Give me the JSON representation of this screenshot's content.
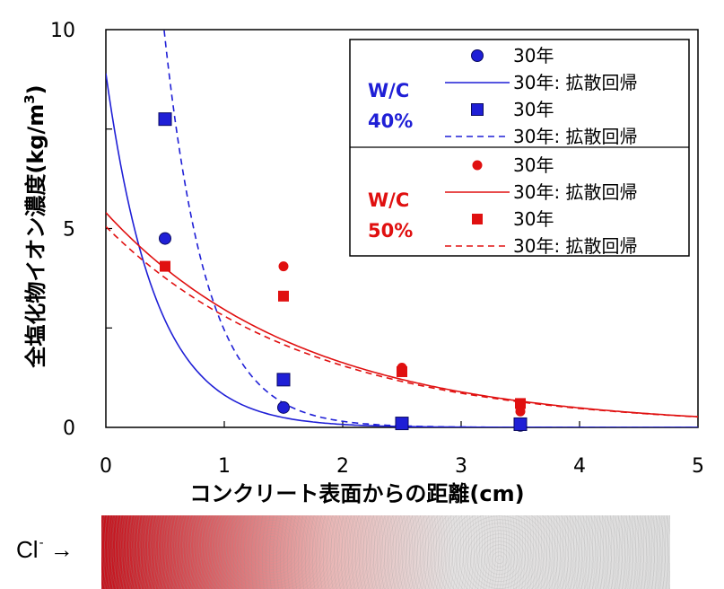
{
  "cl_label": {
    "symbol": "Cl",
    "charge": "-",
    "arrow": "→"
  },
  "chart_data": {
    "type": "scatter",
    "ylabel_main": "全塩化物イオン濃度(kg/m",
    "ylabel_sup": "3",
    "ylabel_close": ")",
    "xlabel": "コンクリート表面からの距離(cm)",
    "xlim": [
      0,
      5
    ],
    "ylim": [
      0,
      10
    ],
    "xticks": [
      "0",
      "1",
      "2",
      "3",
      "4",
      "5"
    ],
    "yticks": [
      "0",
      "5",
      "10"
    ],
    "groups": [
      {
        "wc_label": "W/C",
        "wc_value": "40%",
        "color": "#1f1fd6",
        "series": [
          {
            "name": "30年",
            "kind": "points",
            "marker": "circle",
            "x": [
              0.5,
              1.5,
              2.5,
              3.5
            ],
            "y": [
              4.75,
              0.5,
              0.1,
              0.05
            ]
          },
          {
            "name": "30年: 拡散回帰",
            "kind": "fit",
            "dash": false,
            "c0": 8.9,
            "k": 2.39,
            "x0": 0
          },
          {
            "name": "30年",
            "kind": "points",
            "marker": "square",
            "x": [
              0.5,
              1.5,
              2.5,
              3.5
            ],
            "y": [
              7.75,
              1.2,
              0.1,
              0.08
            ]
          },
          {
            "name": "30年: 拡散回帰",
            "kind": "fit",
            "dash": true,
            "c0": 17.0,
            "k": 2.77,
            "x0": 0.3
          }
        ]
      },
      {
        "wc_label": "W/C",
        "wc_value": "50%",
        "color": "#e01010",
        "series": [
          {
            "name": "30年",
            "kind": "points",
            "marker": "circle",
            "x": [
              0.5,
              1.5,
              2.5,
              3.5
            ],
            "y": [
              4.05,
              4.05,
              1.5,
              0.4
            ]
          },
          {
            "name": "30年: 拡散回帰",
            "kind": "fit",
            "dash": false,
            "c0": 5.4,
            "k": 0.6,
            "x0": 0
          },
          {
            "name": "30年",
            "kind": "points",
            "marker": "square",
            "x": [
              0.5,
              1.5,
              2.5,
              3.5
            ],
            "y": [
              4.05,
              3.3,
              1.4,
              0.6
            ]
          },
          {
            "name": "30年: 拡散回帰",
            "kind": "fit",
            "dash": true,
            "c0": 5.05,
            "k": 0.59,
            "x0": 0
          }
        ]
      }
    ]
  }
}
